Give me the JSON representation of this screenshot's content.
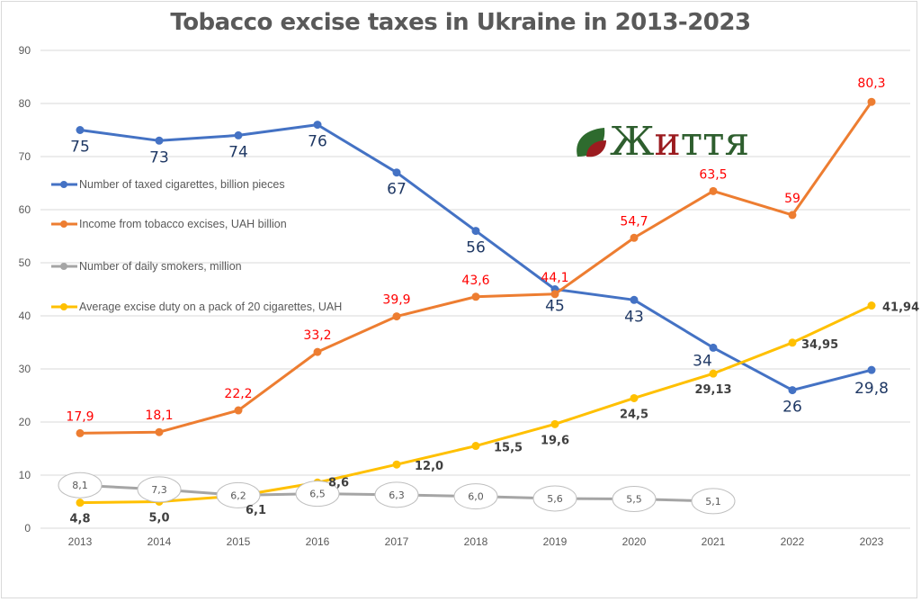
{
  "chart_data": {
    "type": "line",
    "title": "Tobacco excise taxes in Ukraine in 2013-2023",
    "xlabel": "",
    "ylabel": "",
    "ylim": [
      0,
      90
    ],
    "yticks": [
      0,
      10,
      20,
      30,
      40,
      50,
      60,
      70,
      80,
      90
    ],
    "grid": true,
    "legend_position": "left-inside",
    "categories": [
      "2013",
      "2014",
      "2015",
      "2016",
      "2017",
      "2018",
      "2019",
      "2020",
      "2021",
      "2022",
      "2023"
    ],
    "series": [
      {
        "name": "Number of taxed cigarettes, billion pieces",
        "color": "#4472c4",
        "label_color": "#1f3864",
        "values": [
          75,
          73,
          74,
          76,
          67,
          56,
          45,
          43,
          34,
          26,
          29.8
        ],
        "labels": [
          "75",
          "73",
          "74",
          "76",
          "67",
          "56",
          "45",
          "43",
          "34",
          "26",
          "29,8"
        ]
      },
      {
        "name": "Income from tobacco excises, UAH billion",
        "color": "#ed7d31",
        "label_color": "#ff0000",
        "values": [
          17.9,
          18.1,
          22.2,
          33.2,
          39.9,
          43.6,
          44.1,
          54.7,
          63.5,
          59,
          80.3
        ],
        "labels": [
          "17,9",
          "18,1",
          "22,2",
          "33,2",
          "39,9",
          "43,6",
          "44,1",
          "54,7",
          "63,5",
          "59",
          "80,3"
        ]
      },
      {
        "name": "Number of daily smokers, million",
        "color": "#a5a5a5",
        "label_color": "#595959",
        "values": [
          8.1,
          7.3,
          6.2,
          6.5,
          6.3,
          6.0,
          5.6,
          5.5,
          5.1,
          null,
          null
        ],
        "labels": [
          "8,1",
          "7,3",
          "6,2",
          "6,5",
          "6,3",
          "6,0",
          "5,6",
          "5,5",
          "5,1",
          null,
          null
        ]
      },
      {
        "name": "Average excise duty on a pack of 20 cigarettes, UAH",
        "color": "#ffc000",
        "label_color": "#404040",
        "values": [
          4.8,
          5.0,
          6.1,
          8.6,
          12.0,
          15.5,
          19.6,
          24.5,
          29.13,
          34.95,
          41.94
        ],
        "labels": [
          "4,8",
          "5,0",
          "6,1",
          "8,6",
          "12,0",
          "15,5",
          "19,6",
          "24,5",
          "29,13",
          "34,95",
          "41,94"
        ]
      }
    ]
  },
  "logo": {
    "text_prefix": "Ж",
    "text_red": "и",
    "text_suffix": "ття"
  }
}
